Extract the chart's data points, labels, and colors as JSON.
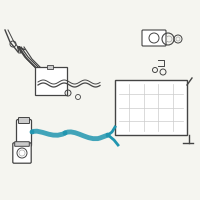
{
  "bg_color": "#f5f5f0",
  "highlight_color": "#2196b0",
  "line_color": "#888888",
  "dark_color": "#444444",
  "light_gray": "#cccccc",
  "mid_gray": "#aaaaaa"
}
